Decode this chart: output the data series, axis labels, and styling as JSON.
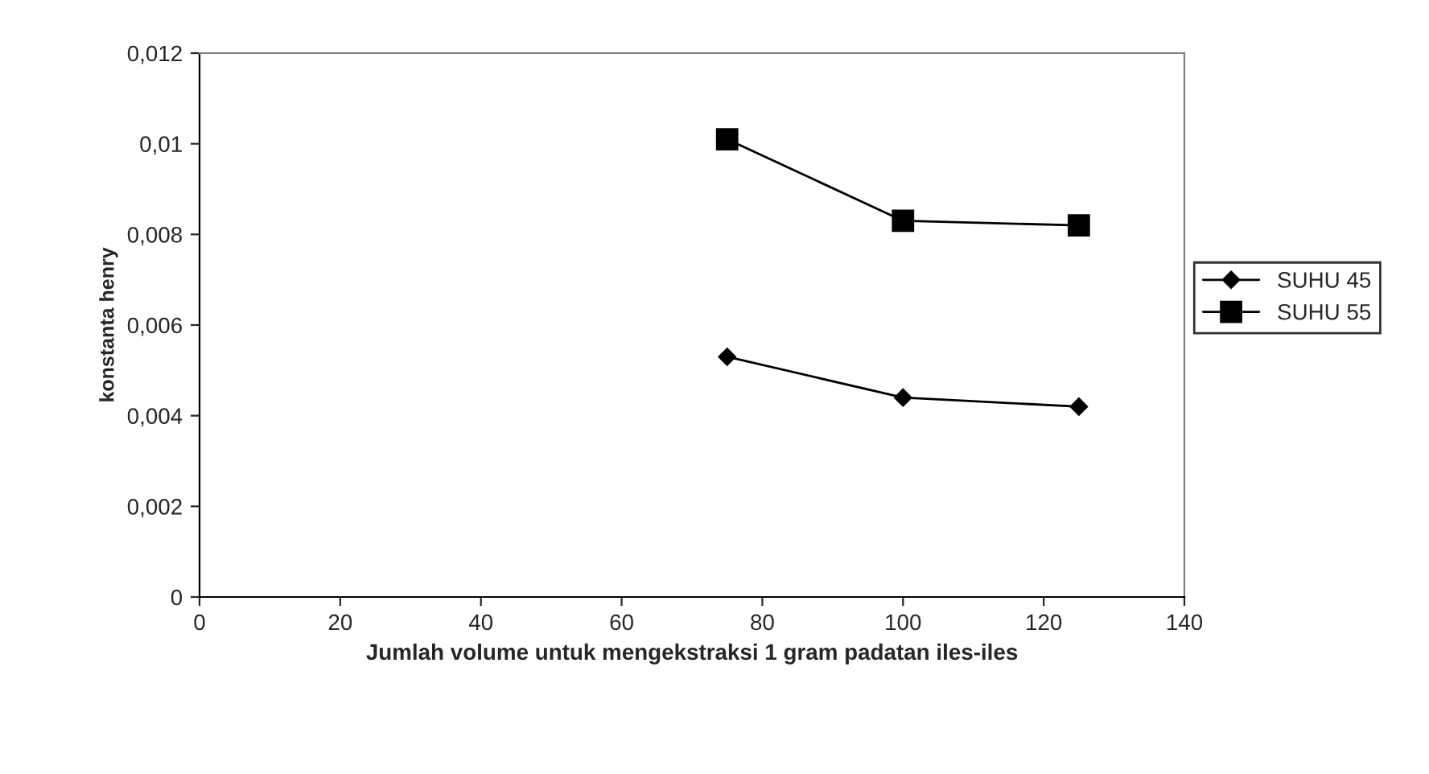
{
  "chart_data": {
    "type": "line",
    "xlabel": "Jumlah volume untuk mengekstraksi 1 gram padatan iles-iles",
    "ylabel": "konstanta henry",
    "x": [
      75,
      100,
      125
    ],
    "series": [
      {
        "name": "SUHU 45",
        "color": "#000000",
        "values": [
          0.0053,
          0.0044,
          0.0042
        ],
        "marker": "diamond"
      },
      {
        "name": "SUHU 55",
        "color": "#000000",
        "values": [
          0.0101,
          0.0083,
          0.0082
        ],
        "marker": "square"
      }
    ],
    "xlim": [
      0,
      140
    ],
    "xticks": [
      0,
      20,
      40,
      60,
      80,
      100,
      120,
      140
    ],
    "ylim": [
      0,
      0.012
    ],
    "yticks": [
      {
        "value": 0,
        "label": "0"
      },
      {
        "value": 0.002,
        "label": "0,002"
      },
      {
        "value": 0.004,
        "label": "0,004"
      },
      {
        "value": 0.006,
        "label": "0,006"
      },
      {
        "value": 0.008,
        "label": "0,008"
      },
      {
        "value": 0.01,
        "label": "0,01"
      },
      {
        "value": 0.012,
        "label": "0,012"
      }
    ],
    "grid": false,
    "legend": "right",
    "line_style": "solid"
  }
}
